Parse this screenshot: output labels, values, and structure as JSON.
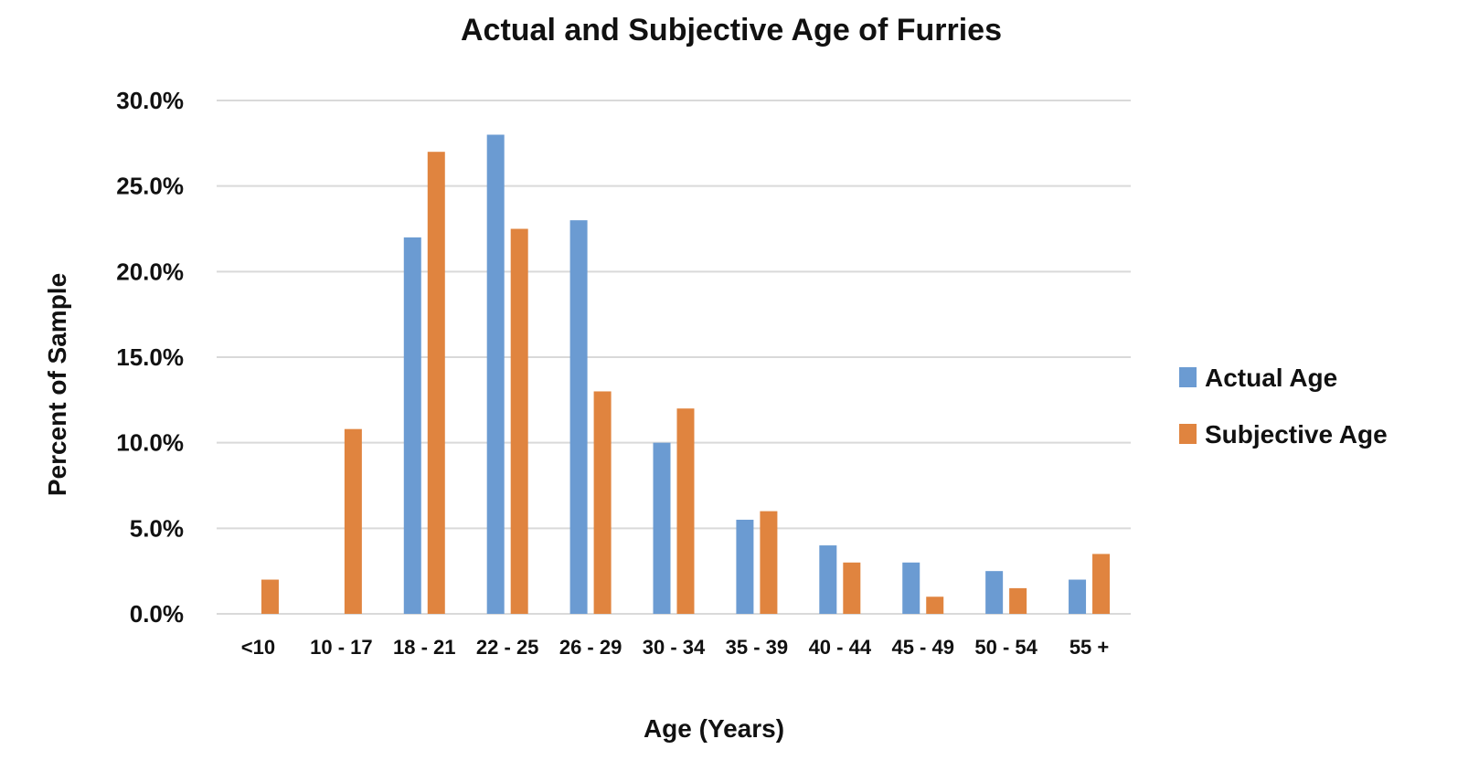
{
  "chart_data": {
    "type": "bar",
    "title": "Actual and Subjective Age of Furries",
    "xlabel": "Age (Years)",
    "ylabel": "Percent of Sample",
    "categories": [
      "<10",
      "10 - 17",
      "18 - 21",
      "22 - 25",
      "26 - 29",
      "30 - 34",
      "35 - 39",
      "40 - 44",
      "45 - 49",
      "50 - 54",
      "55 +"
    ],
    "series": [
      {
        "name": "Actual Age",
        "color": "#6b9bd2",
        "values": [
          0,
          0,
          22.0,
          28.0,
          23.0,
          10.0,
          5.5,
          4.0,
          3.0,
          2.5,
          2.0
        ]
      },
      {
        "name": "Subjective Age",
        "color": "#e0843f",
        "values": [
          2.0,
          10.8,
          27.0,
          22.5,
          13.0,
          12.0,
          6.0,
          3.0,
          1.0,
          1.5,
          3.5
        ]
      }
    ],
    "ylim": [
      0,
      30
    ],
    "yticks": [
      "0.0%",
      "5.0%",
      "10.0%",
      "15.0%",
      "20.0%",
      "25.0%",
      "30.0%"
    ],
    "grid": true,
    "legend_position": "right"
  }
}
